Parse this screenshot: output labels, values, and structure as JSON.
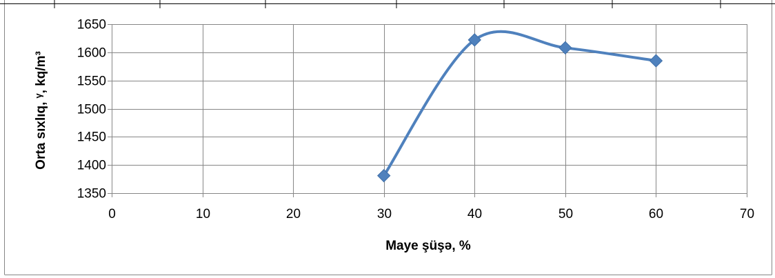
{
  "chart_data": {
    "type": "line",
    "title": "",
    "xlabel": "Maye şüşə, %",
    "ylabel": "Orta sıxlıq, ᵞ, kq/m³",
    "xlim": [
      0,
      70
    ],
    "ylim": [
      1350,
      1650
    ],
    "xticks": [
      "0",
      "10",
      "20",
      "30",
      "40",
      "50",
      "60",
      "70"
    ],
    "yticks": [
      "1350",
      "1400",
      "1450",
      "1500",
      "1550",
      "1600",
      "1650"
    ],
    "grid": true,
    "smooth": true,
    "legend": "none",
    "series": [
      {
        "color": "#4F81BD",
        "marker": "diamond",
        "x": [
          30,
          40,
          50,
          60
        ],
        "y": [
          1381,
          1622,
          1608,
          1585
        ]
      }
    ]
  }
}
